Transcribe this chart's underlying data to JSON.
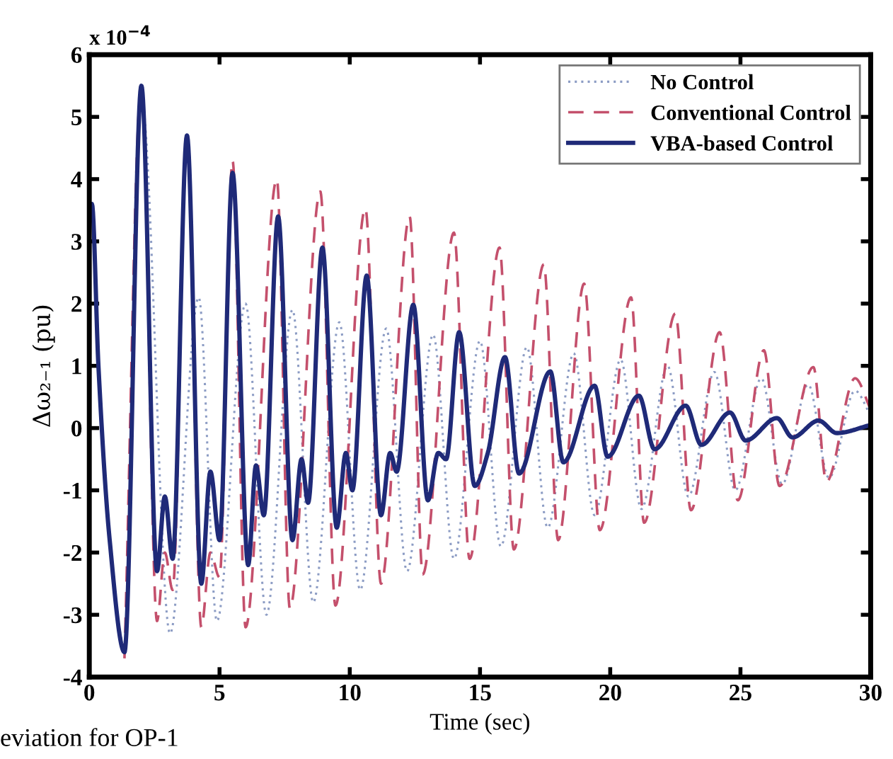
{
  "chart_data": {
    "type": "line",
    "xlabel": "Time (sec)",
    "ylabel": "Δω₂₋₁ (pu)",
    "annotations": [
      "x 10$^{−4}$",
      "eviation for OP-1"
    ],
    "xlim": [
      0,
      30
    ],
    "ylim": [
      -4,
      6
    ],
    "xticks": [
      0,
      5,
      10,
      15,
      20,
      25,
      30
    ],
    "yticks": [
      -4,
      -3,
      -2,
      -1,
      0,
      1,
      2,
      3,
      4,
      5,
      6
    ],
    "grid": false,
    "legend": "top right",
    "marker": "none",
    "series": [
      {
        "name": "No Control",
        "color": "#8c9cc4",
        "line_style": "dotted",
        "x": [
          0,
          0.1,
          0.35,
          0.78,
          1.35,
          2.0,
          3.1,
          4.2,
          4.9,
          6.0,
          6.8,
          7.8,
          8.6,
          9.6,
          10.4,
          11.4,
          12.2,
          13.2,
          14.0,
          15.0,
          15.8,
          16.8,
          17.6,
          18.6,
          19.4,
          20.4,
          21.2,
          22.2,
          23.0,
          24.0,
          24.8,
          25.8,
          26.6,
          27.6,
          28.4,
          29.4,
          30
        ],
        "values": [
          3.5,
          3.6,
          1.0,
          -1.74,
          -3.5,
          5.3,
          -3.3,
          2.1,
          -3.1,
          2.0,
          -3.0,
          1.9,
          -2.8,
          1.7,
          -2.6,
          1.6,
          -2.3,
          1.5,
          -2.1,
          1.4,
          -1.9,
          1.3,
          -1.6,
          1.2,
          -1.4,
          1.1,
          -1.3,
          1.0,
          -1.1,
          0.9,
          -1.0,
          0.8,
          -0.9,
          0.7,
          -0.8,
          0.6,
          0.2
        ]
      },
      {
        "name": "Conventional Control",
        "color": "#c4506c",
        "line_style": "dashed",
        "x": [
          1.35,
          2.0,
          2.6,
          2.9,
          3.2,
          3.75,
          4.3,
          4.65,
          5.0,
          5.5,
          6.0,
          7.2,
          7.7,
          8.87,
          9.45,
          10.6,
          11.2,
          12.3,
          12.8,
          14.0,
          14.6,
          15.75,
          16.3,
          17.45,
          18.0,
          19.0,
          19.6,
          20.8,
          21.3,
          22.5,
          23.1,
          24.2,
          24.9,
          25.9,
          26.5,
          27.8,
          28.3,
          29.4,
          30
        ],
        "values": [
          -3.7,
          5.5,
          -3.1,
          -2.0,
          -2.6,
          4.7,
          -3.2,
          -2.0,
          -2.4,
          4.3,
          -3.2,
          4.0,
          -2.9,
          3.8,
          -2.85,
          3.53,
          -2.5,
          3.4,
          -2.35,
          3.14,
          -2.1,
          2.9,
          -1.95,
          2.63,
          -1.8,
          2.32,
          -1.64,
          2.1,
          -1.52,
          1.84,
          -1.32,
          1.54,
          -1.16,
          1.25,
          -0.93,
          0.98,
          -0.86,
          0.8,
          0.3
        ]
      },
      {
        "name": "VBA-based Control",
        "color": "#1f2a78",
        "line_style": "solid",
        "x": [
          0,
          0.1,
          0.35,
          0.78,
          1.35,
          2.0,
          2.6,
          2.9,
          3.2,
          3.75,
          4.3,
          4.65,
          5.0,
          5.5,
          6.1,
          6.4,
          6.7,
          7.25,
          7.8,
          8.15,
          8.4,
          8.95,
          9.5,
          9.85,
          10.1,
          10.65,
          11.2,
          11.55,
          11.8,
          12.44,
          13.0,
          13.4,
          13.7,
          14.2,
          14.8,
          15.3,
          15.96,
          16.5,
          17.7,
          18.2,
          19.4,
          19.9,
          21.1,
          21.7,
          22.9,
          23.5,
          24.6,
          25.2,
          26.4,
          27.0,
          28.0,
          28.7,
          30
        ],
        "values": [
          3.5,
          3.6,
          1.0,
          -1.79,
          -3.6,
          5.5,
          -2.3,
          -1.1,
          -2.1,
          4.7,
          -2.5,
          -0.7,
          -1.8,
          4.1,
          -2.2,
          -0.6,
          -1.4,
          3.4,
          -1.8,
          -0.5,
          -1.2,
          2.9,
          -1.6,
          -0.4,
          -1.0,
          2.45,
          -1.4,
          -0.4,
          -0.7,
          1.98,
          -1.16,
          -0.4,
          -0.5,
          1.54,
          -0.93,
          -0.4,
          1.14,
          -0.73,
          0.91,
          -0.55,
          0.68,
          -0.46,
          0.52,
          -0.34,
          0.36,
          -0.27,
          0.25,
          -0.2,
          0.16,
          -0.15,
          0.12,
          -0.08,
          0.05
        ]
      }
    ]
  }
}
